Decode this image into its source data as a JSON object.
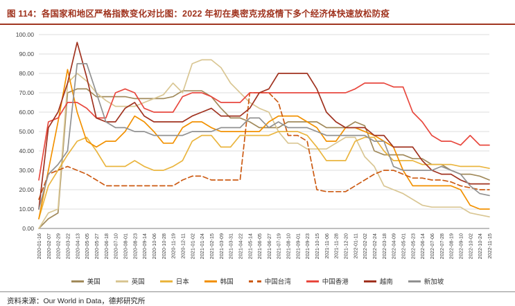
{
  "title": "图 114：各国家和地区严格指数变化对比图：2022 年初在奥密克戎疫情下多个经济体快速放松防疫",
  "source": "资料来源：Our World in Data，德邦研究所",
  "colors": {
    "title_accent": "#a0341f",
    "grid": "#dcdcdc",
    "axis": "#7f7f7f",
    "tick_text": "#404040"
  },
  "chart_data": {
    "type": "line",
    "title": "各国家和地区严格指数变化对比图",
    "ylabel": "",
    "xlabel": "",
    "ylim": [
      0,
      100
    ],
    "grid": "horizontal",
    "legend_position": "bottom",
    "y_ticks": [
      0,
      10,
      20,
      30,
      40,
      50,
      60,
      70,
      80,
      90,
      100
    ],
    "y_tick_labels": [
      "0.00",
      "10.00",
      "20.00",
      "30.00",
      "40.00",
      "50.00",
      "60.00",
      "70.00",
      "80.00",
      "90.00",
      "100.00"
    ],
    "x_labels": [
      "2020-01-16",
      "2020-02-07",
      "2020-02-29",
      "2020-03-22",
      "2020-04-13",
      "2020-05-05",
      "2020-05-27",
      "2020-06-18",
      "2020-07-10",
      "2020-08-01",
      "2020-08-23",
      "2020-09-14",
      "2020-10-06",
      "2020-10-28",
      "2020-11-19",
      "2020-12-11",
      "2021-01-02",
      "2021-01-24",
      "2021-02-15",
      "2021-03-09",
      "2021-03-31",
      "2021-04-22",
      "2021-05-14",
      "2021-06-05",
      "2021-06-27",
      "2021-07-19",
      "2021-08-10",
      "2021-09-01",
      "2021-09-23",
      "2021-10-15",
      "2021-11-06",
      "2021-11-28",
      "2021-12-20",
      "2022-01-11",
      "2022-02-02",
      "2022-02-24",
      "2022-03-18",
      "2022-04-09",
      "2022-05-01",
      "2022-05-23",
      "2022-06-14",
      "2022-07-06",
      "2022-07-28",
      "2022-08-19",
      "2022-09-10",
      "2022-10-02",
      "2022-10-24",
      "2022-11-15"
    ],
    "series": [
      {
        "name": "美国",
        "color": "#a18a5b",
        "dashed": false,
        "values": [
          0,
          5,
          8,
          70,
          72,
          72,
          68,
          68,
          68,
          68,
          67,
          67,
          67,
          67,
          68,
          71,
          71,
          71,
          68,
          62,
          57,
          57,
          55,
          52,
          52,
          52,
          55,
          55,
          55,
          55,
          52,
          52,
          52,
          55,
          53,
          40,
          38,
          38,
          38,
          36,
          36,
          33,
          33,
          30,
          28,
          28,
          27,
          25
        ]
      },
      {
        "name": "英国",
        "color": "#d9c693",
        "dashed": false,
        "values": [
          0,
          8,
          10,
          75,
          80,
          76,
          70,
          66,
          63,
          63,
          63,
          65,
          67,
          69,
          75,
          70,
          85,
          87,
          87,
          83,
          75,
          70,
          65,
          62,
          60,
          50,
          44,
          44,
          41,
          41,
          41,
          44,
          47,
          47,
          37,
          32,
          22,
          20,
          18,
          15,
          12,
          11,
          11,
          11,
          11,
          8,
          7,
          6
        ]
      },
      {
        "name": "日本",
        "color": "#eab53f",
        "dashed": false,
        "values": [
          5,
          22,
          30,
          38,
          45,
          47,
          40,
          32,
          32,
          32,
          35,
          32,
          30,
          30,
          32,
          35,
          45,
          48,
          48,
          42,
          42,
          48,
          48,
          48,
          48,
          50,
          50,
          50,
          48,
          42,
          35,
          35,
          35,
          45,
          47,
          47,
          40,
          35,
          35,
          35,
          33,
          33,
          33,
          33,
          32,
          32,
          32,
          31
        ]
      },
      {
        "name": "韩国",
        "color": "#f29100",
        "dashed": false,
        "values": [
          5,
          30,
          55,
          82,
          60,
          45,
          42,
          45,
          45,
          50,
          58,
          55,
          50,
          44,
          44,
          52,
          55,
          55,
          52,
          50,
          50,
          50,
          50,
          50,
          55,
          58,
          58,
          58,
          55,
          52,
          45,
          45,
          52,
          52,
          50,
          48,
          45,
          42,
          30,
          22,
          22,
          22,
          22,
          22,
          20,
          12,
          10,
          10
        ]
      },
      {
        "name": "中国台湾",
        "color": "#cc5a12",
        "dashed": true,
        "values": [
          15,
          28,
          30,
          32,
          30,
          28,
          25,
          22,
          22,
          22,
          22,
          22,
          22,
          22,
          22,
          25,
          27,
          27,
          25,
          25,
          25,
          25,
          70,
          70,
          70,
          65,
          48,
          48,
          45,
          20,
          19,
          19,
          19,
          22,
          25,
          28,
          30,
          30,
          28,
          26,
          26,
          25,
          25,
          24,
          22,
          21,
          20,
          20
        ]
      },
      {
        "name": "中国香港",
        "color": "#e8483e",
        "dashed": false,
        "values": [
          25,
          55,
          57,
          65,
          65,
          62,
          57,
          57,
          70,
          72,
          70,
          62,
          60,
          60,
          60,
          68,
          70,
          70,
          68,
          65,
          65,
          65,
          70,
          70,
          70,
          70,
          70,
          70,
          70,
          70,
          70,
          70,
          70,
          72,
          75,
          75,
          75,
          73,
          73,
          60,
          55,
          48,
          45,
          45,
          43,
          48,
          43,
          43
        ]
      },
      {
        "name": "越南",
        "color": "#a0321f",
        "dashed": false,
        "values": [
          10,
          52,
          60,
          75,
          96,
          78,
          57,
          55,
          55,
          62,
          65,
          58,
          55,
          55,
          55,
          55,
          58,
          60,
          62,
          58,
          58,
          58,
          62,
          70,
          72,
          80,
          80,
          80,
          80,
          72,
          60,
          55,
          52,
          52,
          52,
          48,
          48,
          42,
          42,
          42,
          35,
          30,
          28,
          28,
          25,
          23,
          23,
          23
        ]
      },
      {
        "name": "新加坡",
        "color": "#919191",
        "dashed": false,
        "values": [
          10,
          28,
          33,
          40,
          85,
          85,
          70,
          55,
          52,
          52,
          50,
          50,
          48,
          48,
          48,
          48,
          50,
          50,
          50,
          52,
          52,
          52,
          57,
          57,
          52,
          55,
          52,
          52,
          52,
          50,
          48,
          48,
          48,
          48,
          48,
          45,
          45,
          32,
          30,
          30,
          30,
          30,
          32,
          30,
          28,
          22,
          18,
          17
        ]
      }
    ]
  }
}
